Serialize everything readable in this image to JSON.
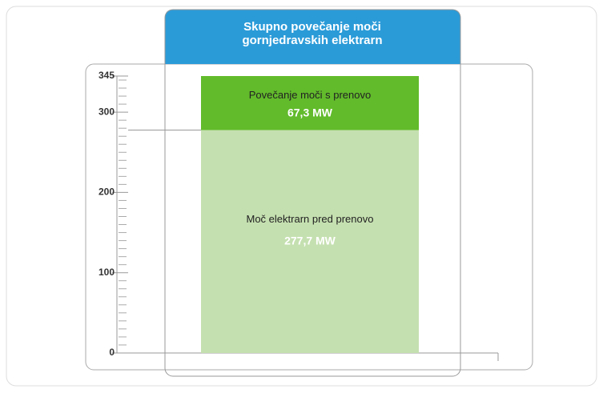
{
  "chart_data": {
    "type": "stacked_bar",
    "title": "Skupno povečanje moči gornjedravskih elektrarn",
    "categories": [
      null
    ],
    "series": [
      {
        "name": "Moč elektrarn pred prenovo",
        "color": "#c5e0b0",
        "values": [
          277.7
        ],
        "value_labels": [
          "277,7 MW"
        ]
      },
      {
        "name": "Povečanje moči s prenovo",
        "color": "#62bb2b",
        "values": [
          67.3
        ],
        "value_labels": [
          "67,3 MW"
        ]
      }
    ],
    "ylim": [
      0,
      345
    ],
    "yticks": [
      0,
      100,
      200,
      300,
      345
    ],
    "minor_yticks": [
      10,
      20,
      30,
      40,
      50,
      60,
      70,
      80,
      90,
      110,
      120,
      130,
      140,
      150,
      160,
      170,
      180,
      190,
      210,
      220,
      230,
      240,
      250,
      260,
      270,
      280,
      290,
      310,
      320,
      330,
      340
    ],
    "header_color": "#2b9bd8"
  }
}
